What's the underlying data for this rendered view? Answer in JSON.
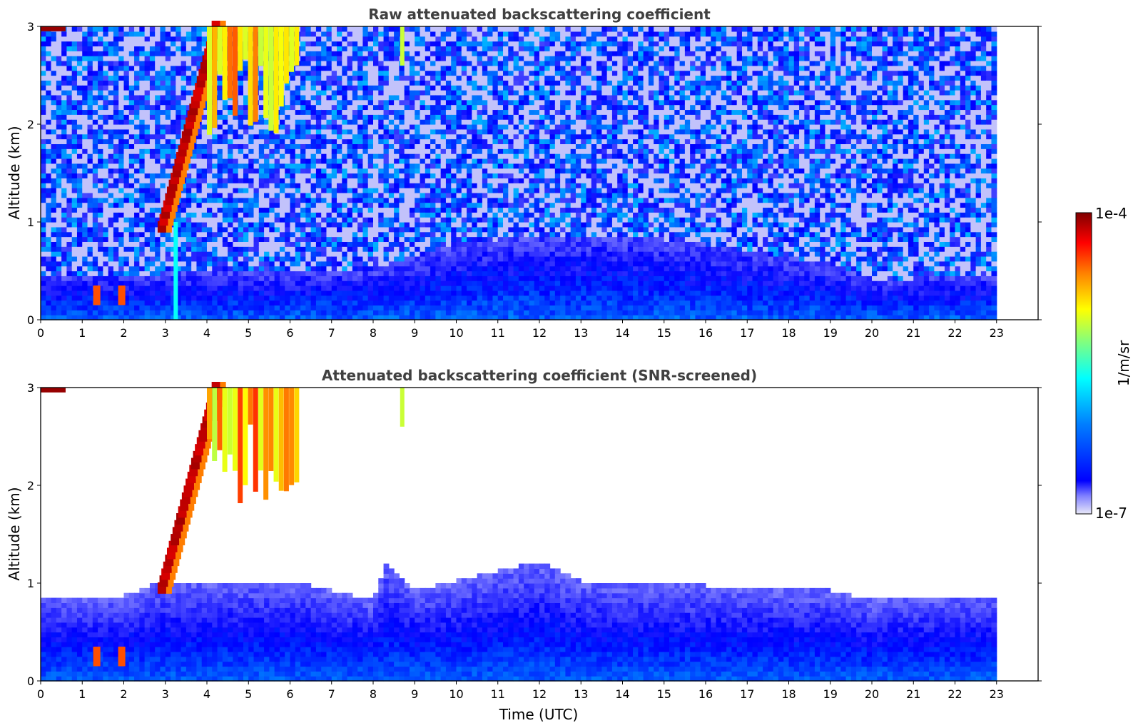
{
  "chart_data": [
    {
      "type": "heatmap",
      "title": "Raw attenuated backscattering coefficient",
      "xlabel": "",
      "ylabel": "Altitude (km)",
      "xlim": [
        0,
        24
      ],
      "ylim": [
        0,
        3
      ],
      "x_ticks": [
        0,
        1,
        2,
        3,
        4,
        5,
        6,
        7,
        8,
        9,
        10,
        11,
        12,
        13,
        14,
        15,
        16,
        17,
        18,
        19,
        20,
        21,
        22,
        23
      ],
      "y_ticks": [
        0,
        1,
        2,
        3
      ],
      "data_time_range": [
        0,
        23
      ],
      "features": [
        {
          "kind": "noise_background",
          "altitude_range": [
            1,
            3
          ],
          "level": "low"
        },
        {
          "kind": "boundary_layer",
          "top_km": [
            [
              0,
              0.45
            ],
            [
              3,
              0.45
            ],
            [
              8,
              0.5
            ],
            [
              10,
              0.75
            ],
            [
              12,
              0.85
            ],
            [
              15,
              0.8
            ],
            [
              16,
              0.75
            ],
            [
              19,
              0.55
            ],
            [
              20,
              0.4
            ],
            [
              21,
              0.4
            ],
            [
              23,
              0.45
            ]
          ]
        },
        {
          "kind": "rising_cloud",
          "time_start": 2.9,
          "alt_start": 0.95,
          "time_end": 4.2,
          "alt_end": 3.0,
          "level": "very_high"
        },
        {
          "kind": "precipitation_streaks",
          "time_range": [
            4.0,
            6.1
          ],
          "alt_range": [
            1.8,
            3.0
          ],
          "level": "high"
        },
        {
          "kind": "cloud_blob",
          "time": 8.7,
          "alt_range": [
            2.6,
            3.0
          ],
          "level": "medium"
        },
        {
          "kind": "cloud_blob",
          "time": 0.3,
          "alt_range": [
            2.95,
            3.0
          ],
          "level": "very_high"
        },
        {
          "kind": "aerosol_spots",
          "times": [
            1.35,
            1.95
          ],
          "alt_range": [
            0.15,
            0.35
          ],
          "level": "high"
        },
        {
          "kind": "vertical_streak",
          "time": 3.25,
          "alt_range": [
            0,
            1.0
          ],
          "level": "medium"
        }
      ]
    },
    {
      "type": "heatmap",
      "title": "Attenuated backscattering coefficient (SNR-screened)",
      "xlabel": "Time (UTC)",
      "ylabel": "Altitude (km)",
      "xlim": [
        0,
        24
      ],
      "ylim": [
        0,
        3
      ],
      "x_ticks": [
        0,
        1,
        2,
        3,
        4,
        5,
        6,
        7,
        8,
        9,
        10,
        11,
        12,
        13,
        14,
        15,
        16,
        17,
        18,
        19,
        20,
        21,
        22,
        23
      ],
      "y_ticks": [
        0,
        1,
        2,
        3
      ],
      "data_time_range": [
        0,
        23
      ],
      "features": [
        {
          "kind": "screened_layer",
          "top_km": [
            [
              0,
              0.85
            ],
            [
              2,
              0.85
            ],
            [
              3,
              1.0
            ],
            [
              4,
              1.0
            ],
            [
              6,
              1.0
            ],
            [
              8,
              0.8
            ],
            [
              8.3,
              1.2
            ],
            [
              9,
              0.9
            ],
            [
              10,
              1.0
            ],
            [
              12,
              1.2
            ],
            [
              13,
              1.0
            ],
            [
              16,
              0.95
            ],
            [
              19,
              0.9
            ],
            [
              20,
              0.8
            ],
            [
              21,
              0.85
            ],
            [
              23,
              0.85
            ]
          ]
        },
        {
          "kind": "rising_cloud",
          "time_start": 2.9,
          "alt_start": 0.95,
          "time_end": 4.2,
          "alt_end": 3.0,
          "level": "very_high"
        },
        {
          "kind": "precipitation_streaks",
          "time_range": [
            4.0,
            6.1
          ],
          "alt_range": [
            1.8,
            3.0
          ],
          "level": "high"
        },
        {
          "kind": "cloud_blob",
          "time": 8.7,
          "alt_range": [
            2.6,
            3.0
          ],
          "level": "medium"
        },
        {
          "kind": "cloud_blob",
          "time": 0.3,
          "alt_range": [
            2.95,
            3.0
          ],
          "level": "very_high"
        },
        {
          "kind": "aerosol_spots",
          "times": [
            1.35,
            1.95
          ],
          "alt_range": [
            0.15,
            0.35
          ],
          "level": "high"
        }
      ]
    }
  ],
  "colorbar": {
    "label": "1/m/sr",
    "min_label": "1e-7",
    "max_label": "1e-4",
    "scale": "log",
    "colormap": "jet",
    "colors": [
      "#e8e8f8",
      "#7f7fff",
      "#0000ff",
      "#0080ff",
      "#00ffff",
      "#80ff80",
      "#ffff00",
      "#ff8000",
      "#ff0000",
      "#800000"
    ]
  }
}
